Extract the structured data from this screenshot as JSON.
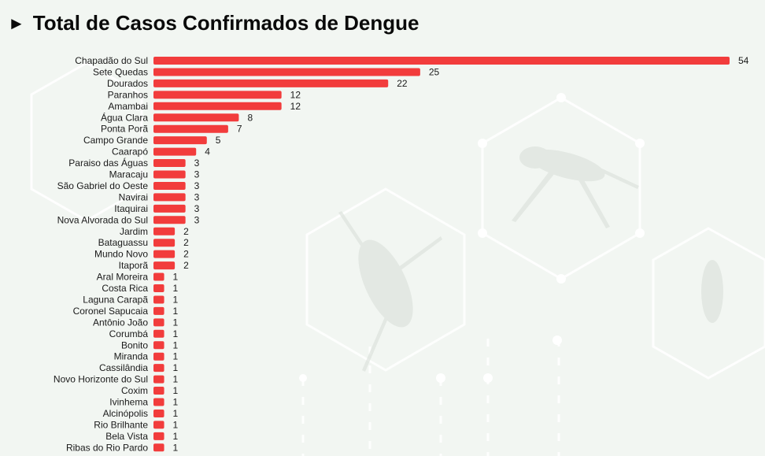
{
  "header": {
    "arrow_icon": "triangle-right-icon",
    "title": "Total de Casos Confirmados de Dengue"
  },
  "colors": {
    "bar": "#f23c3c",
    "background": "#f2f6f2"
  },
  "chart_data": {
    "type": "bar",
    "orientation": "horizontal",
    "title": "Total de Casos Confirmados de Dengue",
    "xlabel": "",
    "ylabel": "",
    "xlim": [
      0,
      54
    ],
    "grid": false,
    "categories": [
      "Chapadão do Sul",
      "Sete Quedas",
      "Dourados",
      "Paranhos",
      "Amambai",
      "Água Clara",
      "Ponta Porã",
      "Campo Grande",
      "Caarapó",
      "Paraiso das Águas",
      "Maracaju",
      "São Gabriel do Oeste",
      "Navirai",
      "Itaquirai",
      "Nova Alvorada do Sul",
      "Jardim",
      "Bataguassu",
      "Mundo Novo",
      "Itaporã",
      "Aral Moreira",
      "Costa Rica",
      "Laguna Carapã",
      "Coronel Sapucaia",
      "Antônio João",
      "Corumbá",
      "Bonito",
      "Miranda",
      "Cassilândia",
      "Novo Horizonte do Sul",
      "Coxim",
      "Ivinhema",
      "Alcinópolis",
      "Rio Brilhante",
      "Bela Vista",
      "Ribas do Rio Pardo"
    ],
    "values": [
      54,
      25,
      22,
      12,
      12,
      8,
      7,
      5,
      4,
      3,
      3,
      3,
      3,
      3,
      3,
      2,
      2,
      2,
      2,
      1,
      1,
      1,
      1,
      1,
      1,
      1,
      1,
      1,
      1,
      1,
      1,
      1,
      1,
      1,
      1
    ]
  }
}
